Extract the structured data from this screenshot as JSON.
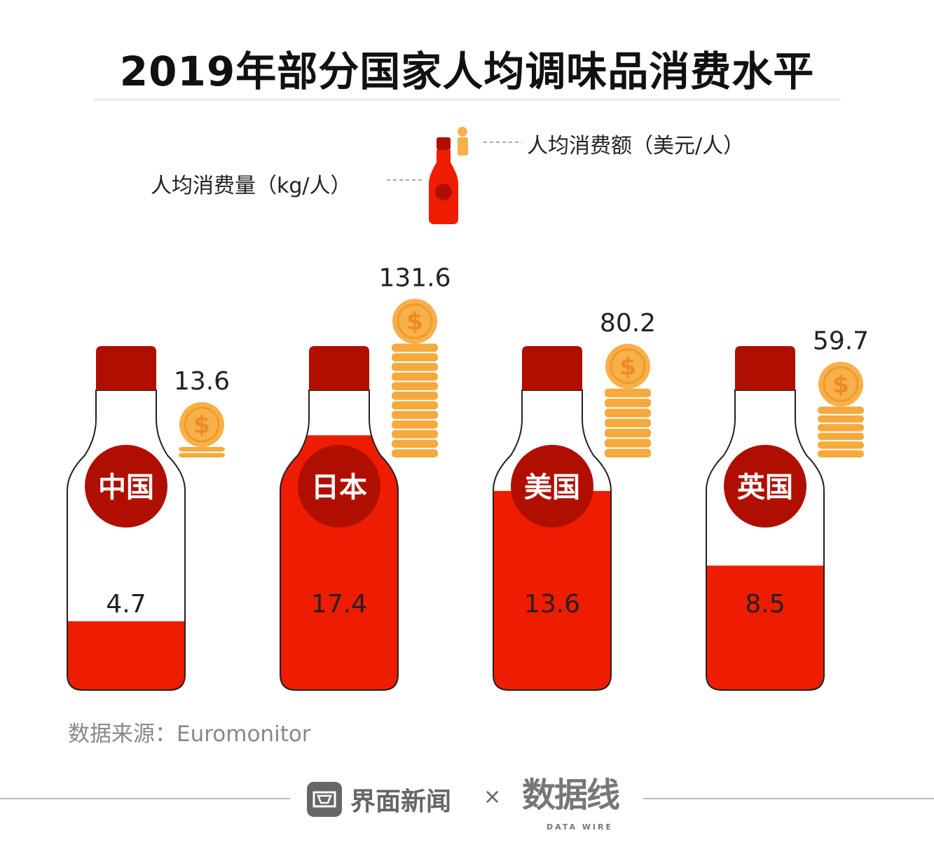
{
  "chart_data": {
    "type": "bar",
    "title": "2019年部分国家人均调味品消费水平",
    "categories": [
      "中国",
      "日本",
      "美国",
      "英国"
    ],
    "series": [
      {
        "name": "人均消费量（kg/人）",
        "values": [
          4.7,
          17.4,
          13.6,
          8.5
        ],
        "mark": "bottle-fill"
      },
      {
        "name": "人均消费额（美元/人）",
        "values": [
          13.6,
          131.6,
          80.2,
          59.7
        ],
        "mark": "coin-stack"
      }
    ],
    "colors": {
      "fill": "#ee1c00",
      "cap": "#b00f00",
      "coin": "#f7b04a"
    }
  },
  "legend": {
    "amount_label": "人均消费额（美元/人）",
    "volume_label": "人均消费量（kg/人）"
  },
  "source": "数据来源：Euromonitor",
  "footer": {
    "brand": "界面新闻",
    "times": "×",
    "partner": "数据线",
    "partner_sub": "DATA WIRE"
  }
}
